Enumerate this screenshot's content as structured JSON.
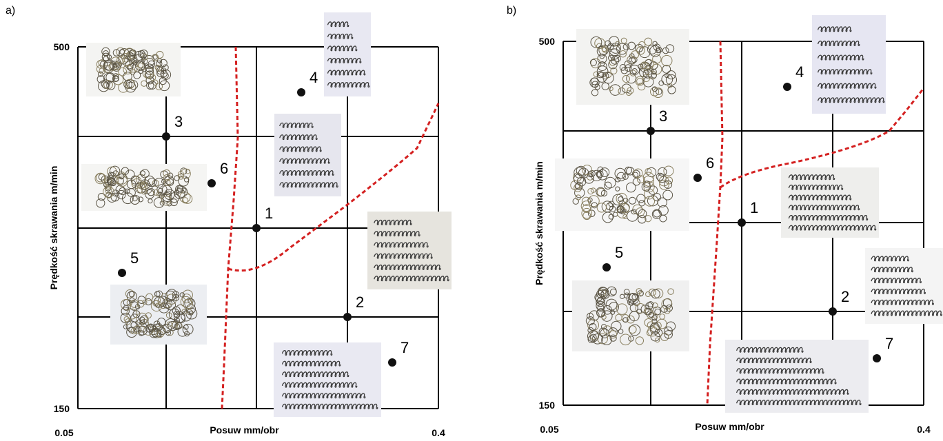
{
  "panels": [
    {
      "label": "a)",
      "y_axis_label": "Prędkość skrawania m/min",
      "x_axis_label": "Posuw mm/obr",
      "y_max": "500",
      "y_min": "150",
      "x_min": "0.05",
      "x_max": "0.4",
      "points": [
        "1",
        "2",
        "3",
        "4",
        "5",
        "6",
        "7"
      ]
    },
    {
      "label": "b)",
      "y_axis_label": "Prędkość skrawania m/min",
      "x_axis_label": "Posuw mm/obr",
      "y_max": "500",
      "y_min": "150",
      "x_min": "0.05",
      "x_max": "0.4",
      "points": [
        "1",
        "2",
        "3",
        "4",
        "5",
        "6",
        "7"
      ]
    }
  ]
}
